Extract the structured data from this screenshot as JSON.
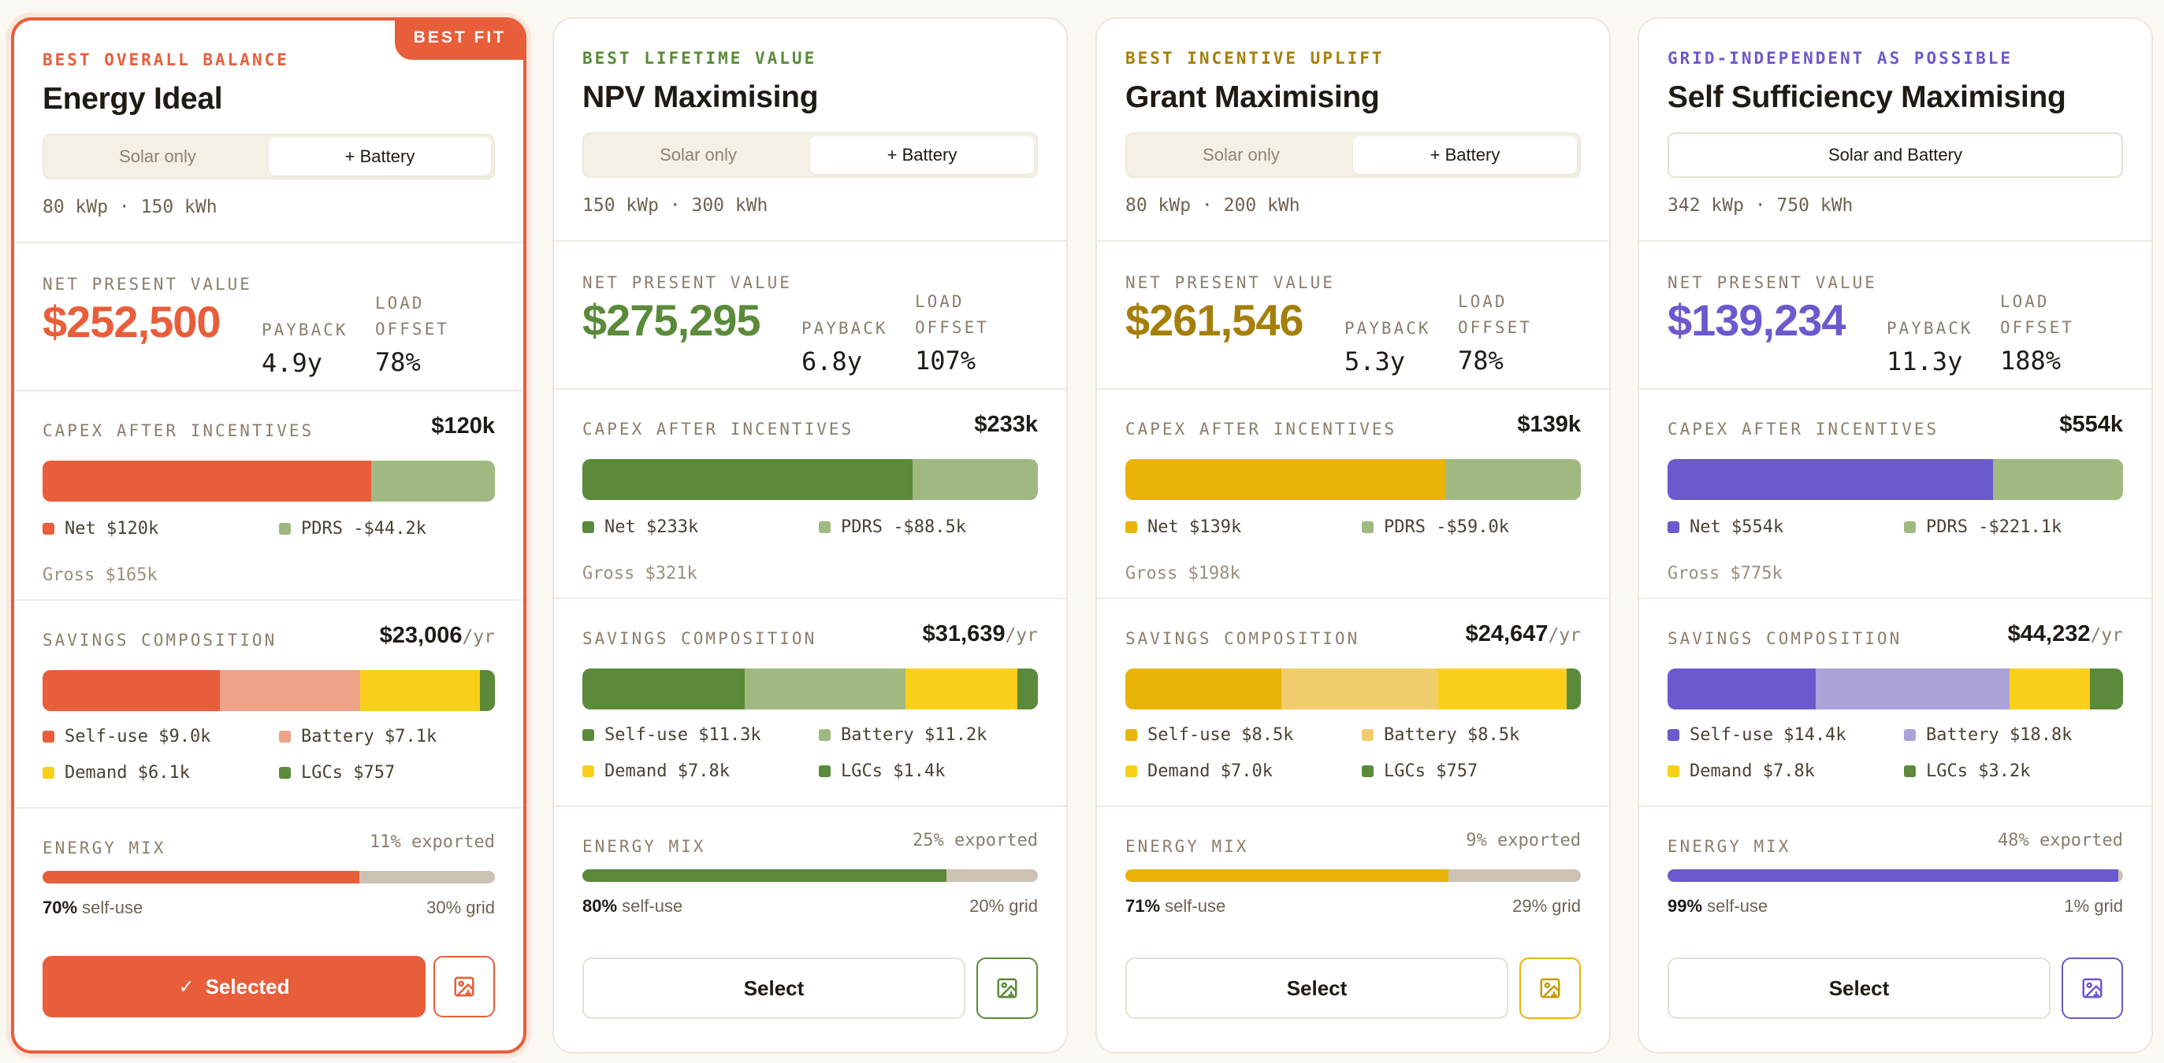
{
  "cards": [
    {
      "eyebrow": "BEST OVERALL BALANCE",
      "title": "Energy Ideal",
      "badge": "BEST FIT",
      "toggle": [
        "Solar only",
        "+ Battery"
      ],
      "specs": "80 kWp · 150 kWh",
      "npv_label": "NET PRESENT VALUE",
      "npv": "$252,500",
      "payback_label": "PAYBACK",
      "payback": "4.9y",
      "load_label": "LOAD OFFSET",
      "load": "78%",
      "capex_label": "CAPEX AFTER INCENTIVES",
      "capex": "$120k",
      "capex_net_fraction": 0.727,
      "capex_legend": [
        "Net $120k",
        "PDRS -$44.2k"
      ],
      "gross": "Gross $165k",
      "savings_label": "SAVINGS COMPOSITION",
      "savings": "$23,006",
      "savings_unit": "/yr",
      "savings_values": [
        9.0,
        7.1,
        6.1,
        0.757
      ],
      "savings_legend": [
        "Self-use $9.0k",
        "Battery $7.1k",
        "Demand $6.1k",
        "LGCs $757"
      ],
      "mix_label": "ENERGY MIX",
      "exported": "11% exported",
      "self_use_fraction": 0.7,
      "self_pct": "70%",
      "self_text": " self-use",
      "grid": "30% grid",
      "button": "Selected",
      "button_check": "✓",
      "colors": {
        "primary": "#e85d3a",
        "light": "#eea287",
        "accent": "#e85d3a"
      }
    },
    {
      "eyebrow": "BEST LIFETIME VALUE",
      "title": "NPV Maximising",
      "toggle": [
        "Solar only",
        "+ Battery"
      ],
      "specs": "150 kWp · 300 kWh",
      "npv_label": "NET PRESENT VALUE",
      "npv": "$275,295",
      "payback_label": "PAYBACK",
      "payback": "6.8y",
      "load_label": "LOAD OFFSET",
      "load": "107%",
      "capex_label": "CAPEX AFTER INCENTIVES",
      "capex": "$233k",
      "capex_net_fraction": 0.725,
      "capex_legend": [
        "Net $233k",
        "PDRS -$88.5k"
      ],
      "gross": "Gross $321k",
      "savings_label": "SAVINGS COMPOSITION",
      "savings": "$31,639",
      "savings_unit": "/yr",
      "savings_values": [
        11.3,
        11.2,
        7.8,
        1.4
      ],
      "savings_legend": [
        "Self-use $11.3k",
        "Battery $11.2k",
        "Demand $7.8k",
        "LGCs $1.4k"
      ],
      "mix_label": "ENERGY MIX",
      "exported": "25% exported",
      "self_use_fraction": 0.8,
      "self_pct": "80%",
      "self_text": " self-use",
      "grid": "20% grid",
      "button": "Select",
      "colors": {
        "primary": "#5a8a3a",
        "light": "#9fb981",
        "accent": "#5a8a3a"
      }
    },
    {
      "eyebrow": "BEST INCENTIVE UPLIFT",
      "title": "Grant Maximising",
      "toggle": [
        "Solar only",
        "+ Battery"
      ],
      "specs": "80 kWp · 200 kWh",
      "npv_label": "NET PRESENT VALUE",
      "npv": "$261,546",
      "payback_label": "PAYBACK",
      "payback": "5.3y",
      "load_label": "LOAD OFFSET",
      "load": "78%",
      "capex_label": "CAPEX AFTER INCENTIVES",
      "capex": "$139k",
      "capex_net_fraction": 0.702,
      "capex_legend": [
        "Net $139k",
        "PDRS -$59.0k"
      ],
      "gross": "Gross $198k",
      "savings_label": "SAVINGS COMPOSITION",
      "savings": "$24,647",
      "savings_unit": "/yr",
      "savings_values": [
        8.5,
        8.5,
        7.0,
        0.757
      ],
      "savings_legend": [
        "Self-use $8.5k",
        "Battery $8.5k",
        "Demand $7.0k",
        "LGCs $757"
      ],
      "mix_label": "ENERGY MIX",
      "exported": "9% exported",
      "self_use_fraction": 0.71,
      "self_pct": "71%",
      "self_text": " self-use",
      "grid": "29% grid",
      "button": "Select",
      "colors": {
        "primary": "#e9b307",
        "light": "#f0cd6c",
        "accent": "#e9b307",
        "eyebrow": "#a57f0a",
        "npv": "#a57f0a"
      }
    },
    {
      "eyebrow": "GRID-INDEPENDENT AS POSSIBLE",
      "title": "Self Sufficiency Maximising",
      "toggle": [
        "Solar and Battery"
      ],
      "specs": "342 kWp · 750 kWh",
      "npv_label": "NET PRESENT VALUE",
      "npv": "$139,234",
      "payback_label": "PAYBACK",
      "payback": "11.3y",
      "load_label": "LOAD OFFSET",
      "load": "188%",
      "capex_label": "CAPEX AFTER INCENTIVES",
      "capex": "$554k",
      "capex_net_fraction": 0.715,
      "capex_legend": [
        "Net $554k",
        "PDRS -$221.1k"
      ],
      "gross": "Gross $775k",
      "savings_label": "SAVINGS COMPOSITION",
      "savings": "$44,232",
      "savings_unit": "/yr",
      "savings_values": [
        14.4,
        18.8,
        7.8,
        3.2
      ],
      "savings_legend": [
        "Self-use $14.4k",
        "Battery $18.8k",
        "Demand $7.8k",
        "LGCs $3.2k"
      ],
      "mix_label": "ENERGY MIX",
      "exported": "48% exported",
      "self_use_fraction": 0.99,
      "self_pct": "99%",
      "self_text": " self-use",
      "grid": "1% grid",
      "button": "Select",
      "colors": {
        "primary": "#6a5acd",
        "light": "#aba2da",
        "accent": "#6a5acd"
      }
    }
  ],
  "shared_colors": {
    "pdrs": "#9fb981",
    "demand": "#f9cf1a",
    "lgcs": "#5a8a3a",
    "grid": "#cbc2b4"
  },
  "icons": {
    "download": "image-download-icon",
    "check": "check-icon"
  }
}
